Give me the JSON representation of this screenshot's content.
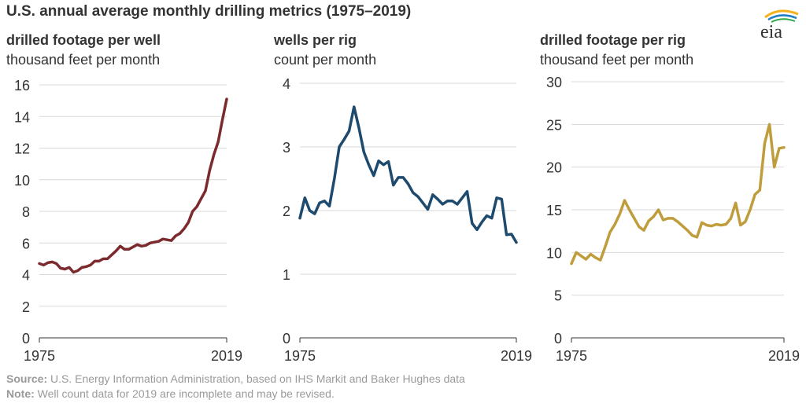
{
  "title": "U.S. annual average monthly drilling metrics (1975–2019)",
  "logo_text": "eia",
  "source_label": "Source:",
  "source_text": "U.S. Energy Information Administration, based on IHS Markit and Baker Hughes data",
  "note_label": "Note:",
  "note_text": "Well count data for 2019 are incomplete and may be revised.",
  "chart_data": [
    {
      "type": "line",
      "title": "drilled footage per well",
      "subtitle": "thousand feet per month",
      "x_start": 1975,
      "x_end": 2019,
      "xticks": [
        "1975",
        "2019"
      ],
      "ylim": [
        0,
        16
      ],
      "yticks": [
        0,
        2,
        4,
        6,
        8,
        10,
        12,
        14,
        16
      ],
      "grid": true,
      "color": "#7b2a2e",
      "x": [
        1975,
        1976,
        1977,
        1978,
        1979,
        1980,
        1981,
        1982,
        1983,
        1984,
        1985,
        1986,
        1987,
        1988,
        1989,
        1990,
        1991,
        1992,
        1993,
        1994,
        1995,
        1996,
        1997,
        1998,
        1999,
        2000,
        2001,
        2002,
        2003,
        2004,
        2005,
        2006,
        2007,
        2008,
        2009,
        2010,
        2011,
        2012,
        2013,
        2014,
        2015,
        2016,
        2017,
        2018,
        2019
      ],
      "values": [
        4.7,
        4.6,
        4.75,
        4.8,
        4.7,
        4.4,
        4.35,
        4.45,
        4.15,
        4.25,
        4.45,
        4.5,
        4.6,
        4.85,
        4.85,
        5.0,
        5.0,
        5.25,
        5.5,
        5.8,
        5.6,
        5.6,
        5.75,
        5.9,
        5.8,
        5.85,
        6.0,
        6.05,
        6.1,
        6.25,
        6.2,
        6.15,
        6.45,
        6.6,
        6.9,
        7.3,
        8.0,
        8.3,
        8.8,
        9.3,
        10.6,
        11.6,
        12.4,
        13.8,
        15.1
      ]
    },
    {
      "type": "line",
      "title": "wells per rig",
      "subtitle": "count per month",
      "x_start": 1975,
      "x_end": 2019,
      "xticks": [
        "1975",
        "2019"
      ],
      "ylim": [
        0,
        4
      ],
      "yticks": [
        0,
        1,
        2,
        3,
        4
      ],
      "grid": true,
      "color": "#1e4a6e",
      "x": [
        1975,
        1976,
        1977,
        1978,
        1979,
        1980,
        1981,
        1982,
        1983,
        1984,
        1985,
        1986,
        1987,
        1988,
        1989,
        1990,
        1991,
        1992,
        1993,
        1994,
        1995,
        1996,
        1997,
        1998,
        1999,
        2000,
        2001,
        2002,
        2003,
        2004,
        2005,
        2006,
        2007,
        2008,
        2009,
        2010,
        2011,
        2012,
        2013,
        2014,
        2015,
        2016,
        2017,
        2018,
        2019
      ],
      "values": [
        1.88,
        2.2,
        2.0,
        1.95,
        2.12,
        2.15,
        2.07,
        2.5,
        3.0,
        3.12,
        3.25,
        3.63,
        3.3,
        2.92,
        2.72,
        2.55,
        2.78,
        2.72,
        2.77,
        2.4,
        2.52,
        2.52,
        2.42,
        2.28,
        2.22,
        2.12,
        2.02,
        2.25,
        2.18,
        2.1,
        2.15,
        2.15,
        2.1,
        2.2,
        2.3,
        1.8,
        1.7,
        1.82,
        1.92,
        1.88,
        2.2,
        2.18,
        1.62,
        1.63,
        1.5
      ]
    },
    {
      "type": "line",
      "title": "drilled footage per rig",
      "subtitle": "thousand feet per month",
      "x_start": 1975,
      "x_end": 2019,
      "xticks": [
        "1975",
        "2019"
      ],
      "ylim": [
        0,
        30
      ],
      "yticks": [
        0,
        5,
        10,
        15,
        20,
        25,
        30
      ],
      "grid": true,
      "color": "#bf9d3d",
      "x": [
        1975,
        1976,
        1977,
        1978,
        1979,
        1980,
        1981,
        1982,
        1983,
        1984,
        1985,
        1986,
        1987,
        1988,
        1989,
        1990,
        1991,
        1992,
        1993,
        1994,
        1995,
        1996,
        1997,
        1998,
        1999,
        2000,
        2001,
        2002,
        2003,
        2004,
        2005,
        2006,
        2007,
        2008,
        2009,
        2010,
        2011,
        2012,
        2013,
        2014,
        2015,
        2016,
        2017,
        2018,
        2019
      ],
      "values": [
        8.7,
        10.0,
        9.6,
        9.2,
        9.8,
        9.4,
        9.1,
        10.7,
        12.4,
        13.3,
        14.5,
        16.1,
        15.0,
        14.0,
        13.0,
        12.6,
        13.7,
        14.2,
        15.0,
        13.8,
        14.0,
        14.0,
        13.6,
        13.1,
        12.6,
        12.0,
        11.8,
        13.5,
        13.2,
        13.1,
        13.3,
        13.2,
        13.3,
        14.0,
        15.8,
        13.2,
        13.6,
        15.0,
        16.8,
        17.3,
        22.8,
        25.0,
        20.0,
        22.2,
        22.3
      ]
    }
  ]
}
